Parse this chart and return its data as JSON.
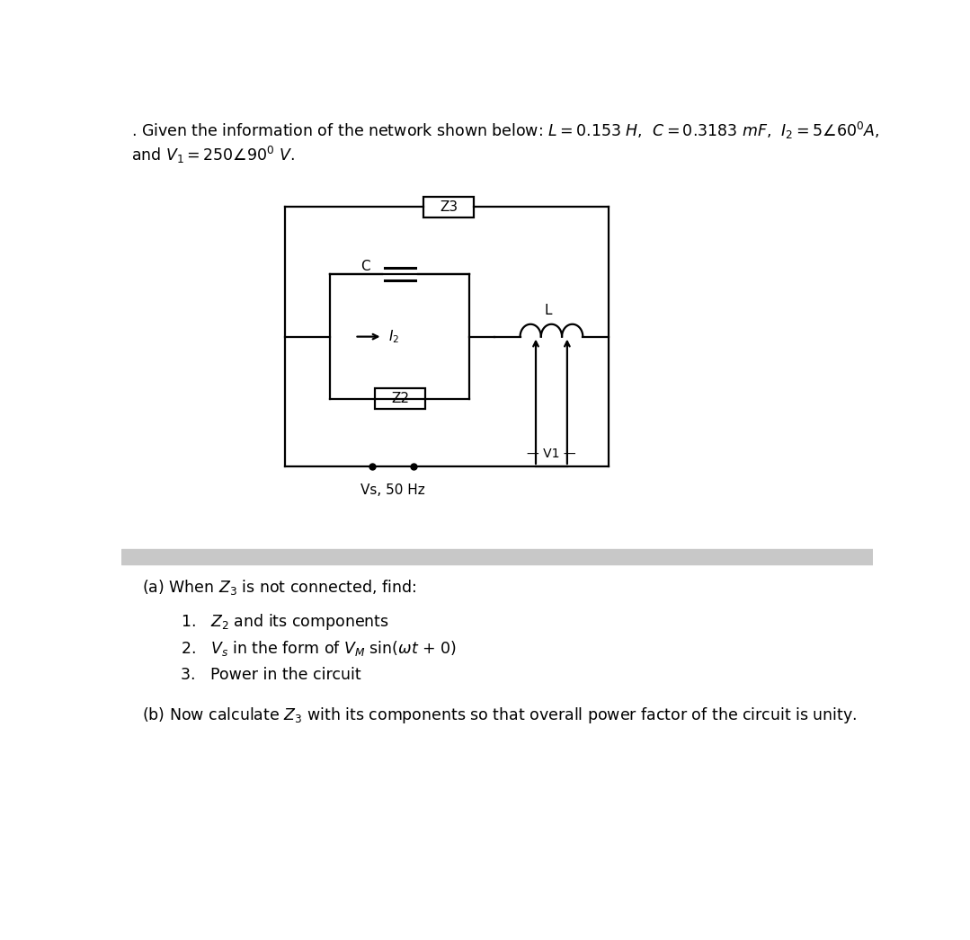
{
  "header_line1": ". Given the information of the network shown below: $L = 0.153$ $H$,  $C = 0.3183$ $mF$,  $I_2 = 5\\angle 60^0A$,",
  "header_line2": "and $V_1 = 250\\angle 90^0$ $V$.",
  "background_color": "#ffffff",
  "divider_color": "#c8c8c8",
  "circuit_line_color": "#000000",
  "text_color": "#000000",
  "font_size_header": 12.5,
  "font_size_labels": 11,
  "font_size_questions": 12.5,
  "part_a_title": "(a) When $Z_3$ is not connected, find:",
  "part_a_items": [
    "1.   $Z_2$ and its components",
    "2.   $V_s$ in the form of $V_M$ sin($\\omega t$ + 0)",
    "3.   Power in the circuit"
  ],
  "part_b_title": "(b) Now calculate $Z_3$ with its components so that overall power factor of the circuit is unity."
}
